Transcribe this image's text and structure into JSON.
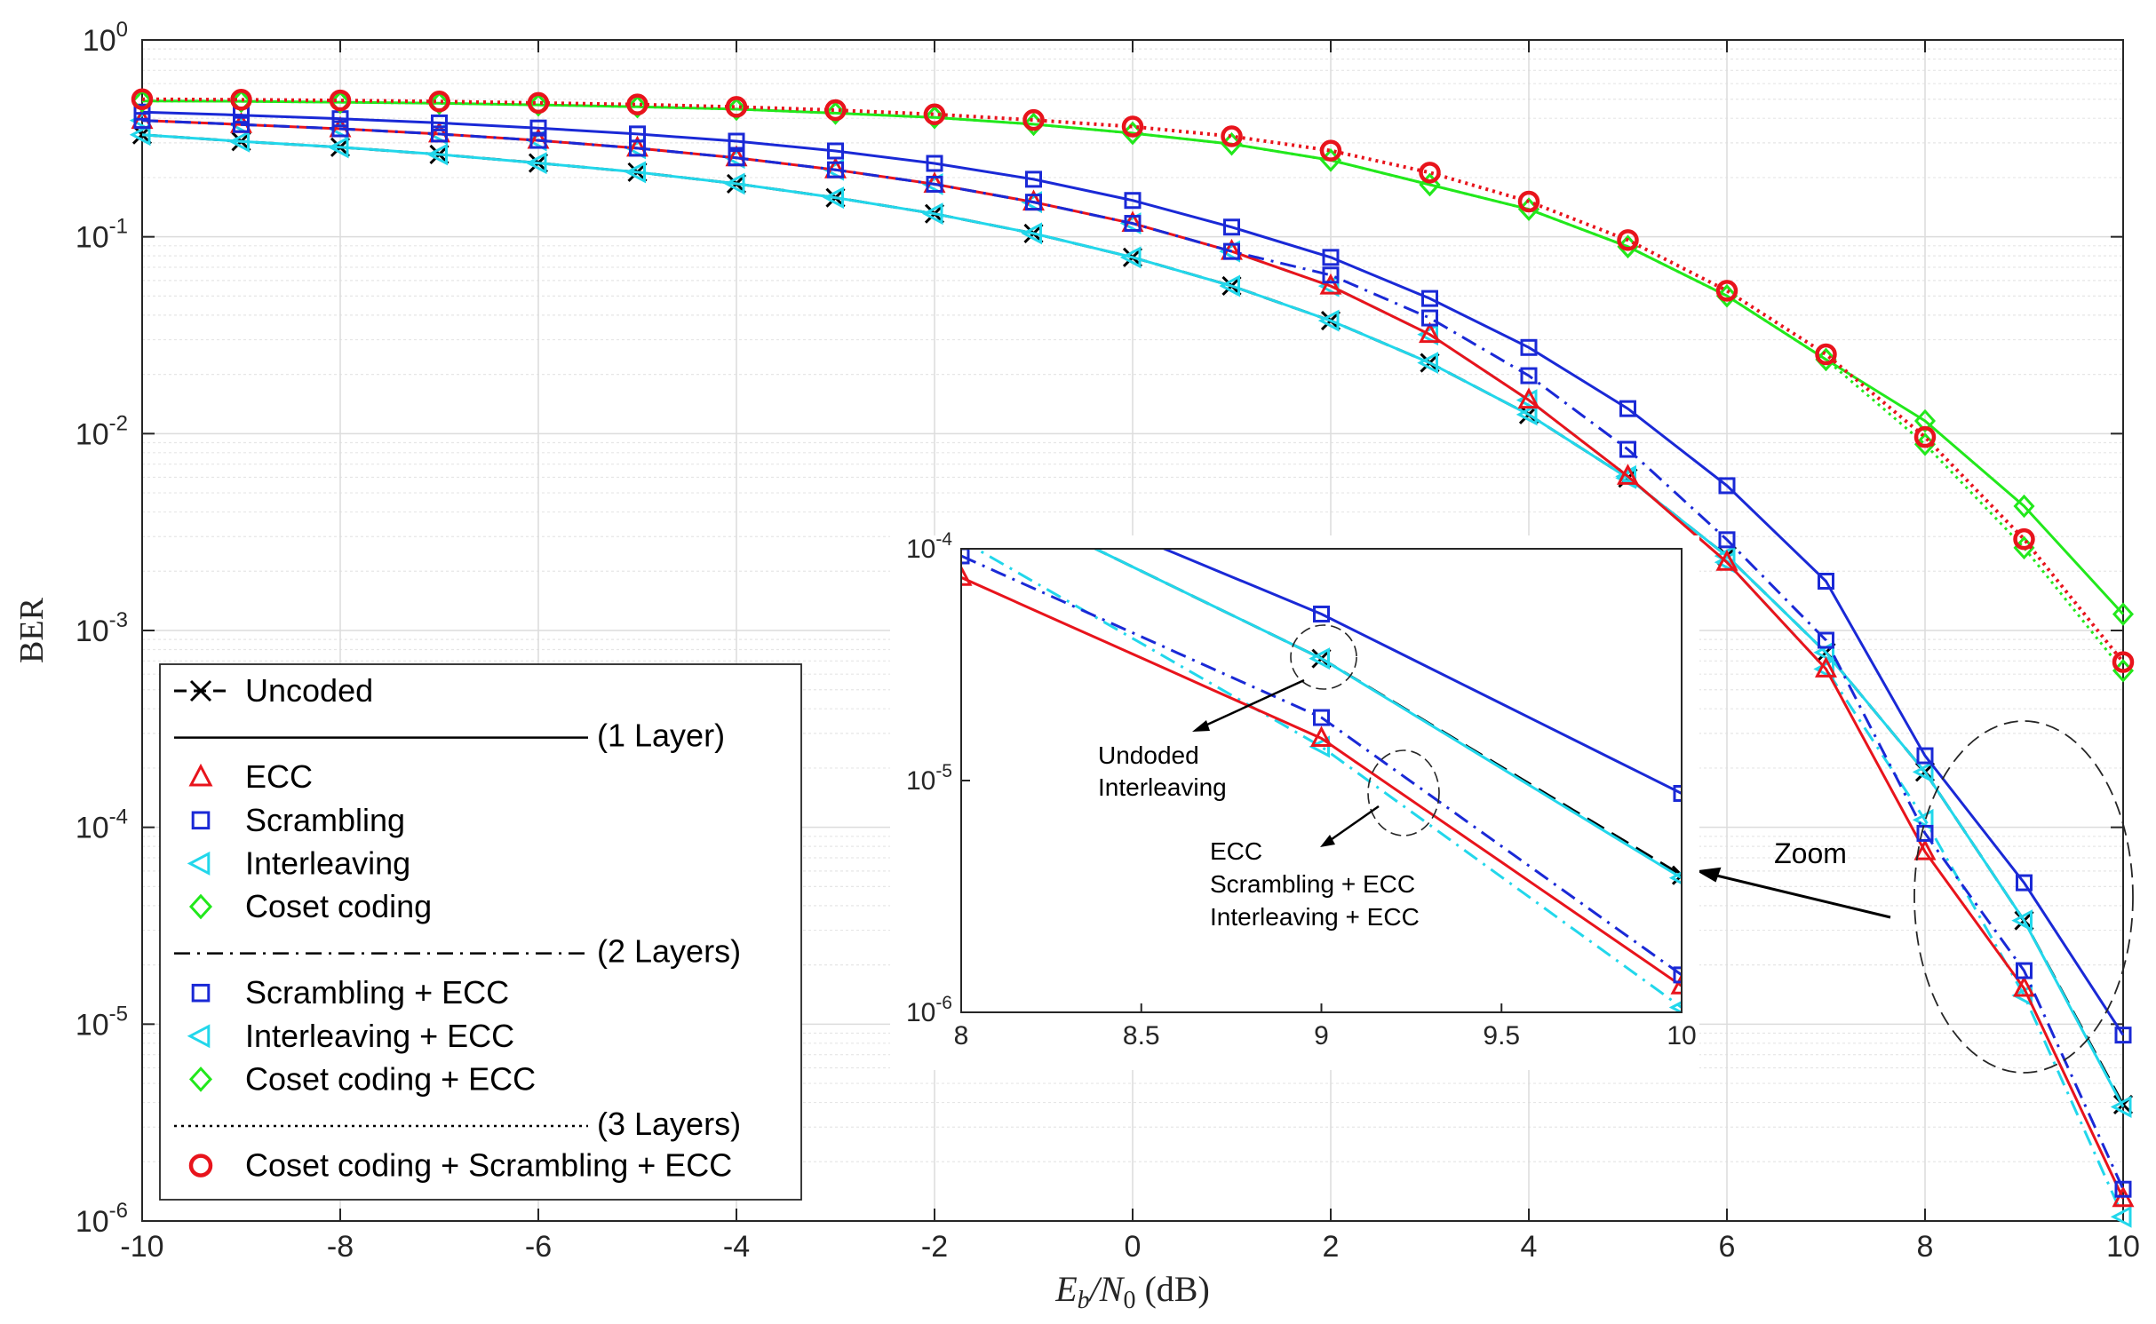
{
  "chart_data": [
    {
      "type": "line",
      "role": "main",
      "ylabel": "BER",
      "xlabel_var": "E",
      "xlabel_sub1": "b",
      "xlabel_slash": "/N",
      "xlabel_sub2": "0",
      "xlabel_unit": " (dB)",
      "yscale": "log",
      "xlim": [
        -10,
        10
      ],
      "ylim": [
        1e-06,
        1
      ],
      "grid": true,
      "xticks": [
        -10,
        -8,
        -6,
        -4,
        -2,
        0,
        2,
        4,
        6,
        8,
        10
      ],
      "xtick_labels": [
        "-10",
        "-8",
        "-6",
        "-4",
        "-2",
        "0",
        "2",
        "4",
        "6",
        "8",
        "10"
      ],
      "ytick_base": [
        "10",
        "10",
        "10",
        "10",
        "10",
        "10",
        "10"
      ],
      "ytick_exp": [
        "0",
        "-1",
        "-2",
        "-3",
        "-4",
        "-5",
        "-6"
      ],
      "ytick_values": [
        1,
        0.1,
        0.01,
        0.001,
        0.0001,
        1e-05,
        1e-06
      ],
      "x": [
        -10,
        -9,
        -8,
        -7,
        -6,
        -5,
        -4,
        -3,
        -2,
        -1,
        0,
        1,
        2,
        3,
        4,
        5,
        6,
        7,
        8,
        9,
        10
      ],
      "series": [
        {
          "key": "uncoded",
          "color": "#000000",
          "dash": "dashed",
          "marker": "x",
          "values": [
            0.33,
            0.305,
            0.285,
            0.262,
            0.237,
            0.213,
            0.186,
            0.158,
            0.131,
            0.104,
            0.0786,
            0.0563,
            0.0375,
            0.0229,
            0.0125,
            0.00595,
            0.00239,
            0.000773,
            0.000191,
            3.36e-05,
            3.9e-06
          ]
        },
        {
          "key": "ecc",
          "color": "#e8141c",
          "dash": "solid",
          "marker": "triangle-up",
          "values": [
            0.39,
            0.372,
            0.354,
            0.333,
            0.309,
            0.282,
            0.252,
            0.219,
            0.185,
            0.15,
            0.117,
            0.0843,
            0.0562,
            0.0319,
            0.0148,
            0.00607,
            0.00222,
            0.000637,
            7.52e-05,
            1.52e-05,
            1.3e-06
          ]
        },
        {
          "key": "scrambling",
          "color": "#1a29d6",
          "dash": "solid",
          "marker": "square",
          "values": [
            0.43,
            0.415,
            0.398,
            0.379,
            0.357,
            0.333,
            0.306,
            0.273,
            0.236,
            0.196,
            0.153,
            0.112,
            0.0786,
            0.0486,
            0.0274,
            0.0134,
            0.00544,
            0.00178,
            0.000231,
            5.23e-05,
            8.8e-06
          ]
        },
        {
          "key": "interleaving",
          "color": "#22d7eb",
          "dash": "solid",
          "marker": "triangle-left",
          "values": [
            0.33,
            0.305,
            0.285,
            0.262,
            0.237,
            0.213,
            0.186,
            0.158,
            0.131,
            0.104,
            0.0786,
            0.0563,
            0.0375,
            0.0229,
            0.0125,
            0.00595,
            0.00239,
            0.000773,
            0.000191,
            3.36e-05,
            3.8e-06
          ]
        },
        {
          "key": "coset",
          "color": "#22e81c",
          "dash": "solid",
          "marker": "diamond",
          "values": [
            0.49,
            0.488,
            0.483,
            0.477,
            0.468,
            0.458,
            0.445,
            0.425,
            0.404,
            0.373,
            0.336,
            0.296,
            0.245,
            0.184,
            0.138,
            0.0891,
            0.0501,
            0.0238,
            0.0116,
            0.00428,
            0.00121
          ]
        },
        {
          "key": "scr_ecc",
          "color": "#1a29d6",
          "dash": "dashdot",
          "marker": "square",
          "values": [
            0.39,
            0.372,
            0.354,
            0.333,
            0.309,
            0.282,
            0.252,
            0.219,
            0.185,
            0.15,
            0.117,
            0.0843,
            0.0639,
            0.0387,
            0.0197,
            0.00832,
            0.00289,
            0.000892,
            9.32e-05,
            1.87e-05,
            1.45e-06
          ]
        },
        {
          "key": "int_ecc",
          "color": "#22d7eb",
          "dash": "dashdot",
          "marker": "triangle-left",
          "values": [
            0.39,
            0.372,
            0.354,
            0.333,
            0.309,
            0.282,
            0.252,
            0.219,
            0.185,
            0.15,
            0.117,
            0.0843,
            0.0562,
            0.0319,
            0.0148,
            0.00607,
            0.00222,
            0.000637,
            0.000109,
            1.4e-05,
            1.05e-06
          ]
        },
        {
          "key": "coset_ecc",
          "color": "#22e81c",
          "dash": "dotted",
          "marker": "diamond",
          "values": [
            0.49,
            0.488,
            0.483,
            0.477,
            0.468,
            0.458,
            0.445,
            0.425,
            0.404,
            0.373,
            0.336,
            0.296,
            0.245,
            0.184,
            0.138,
            0.0891,
            0.0501,
            0.0238,
            0.00883,
            0.00263,
            0.000625
          ]
        },
        {
          "key": "coset_scr_ecc",
          "color": "#e8141c",
          "dash": "dotted",
          "marker": "circle",
          "values": [
            0.5,
            0.497,
            0.493,
            0.487,
            0.479,
            0.47,
            0.457,
            0.44,
            0.419,
            0.392,
            0.363,
            0.324,
            0.274,
            0.212,
            0.151,
            0.0962,
            0.0532,
            0.0253,
            0.00961,
            0.00291,
            0.000691
          ]
        }
      ],
      "legend": {
        "placement": "lower-left",
        "rows": [
          {
            "type": "series",
            "ref": "uncoded",
            "label": "Uncoded"
          },
          {
            "type": "header",
            "style": "solid",
            "label": "(1 Layer)"
          },
          {
            "type": "series",
            "ref": "ecc",
            "label": "ECC"
          },
          {
            "type": "series",
            "ref": "scrambling",
            "label": "Scrambling"
          },
          {
            "type": "series",
            "ref": "interleaving",
            "label": "Interleaving"
          },
          {
            "type": "series",
            "ref": "coset",
            "label": "Coset coding"
          },
          {
            "type": "header",
            "style": "dashdot",
            "label": "(2 Layers)"
          },
          {
            "type": "series",
            "ref": "scr_ecc",
            "label": "Scrambling + ECC"
          },
          {
            "type": "series",
            "ref": "int_ecc",
            "label": "Interleaving + ECC"
          },
          {
            "type": "series",
            "ref": "coset_ecc",
            "label": "Coset coding + ECC"
          },
          {
            "type": "header",
            "style": "dotted",
            "label": "(3 Layers)"
          },
          {
            "type": "series",
            "ref": "coset_scr_ecc",
            "label": "Coset coding + Scrambling + ECC"
          }
        ]
      },
      "annotations": {
        "zoom_label": "Zoom"
      }
    },
    {
      "type": "line",
      "role": "inset",
      "yscale": "log",
      "xlim": [
        8,
        10
      ],
      "ylim": [
        1e-06,
        0.0001
      ],
      "grid": false,
      "xticks": [
        8,
        8.5,
        9,
        9.5,
        10
      ],
      "xtick_labels": [
        "8",
        "8.5",
        "9",
        "9.5",
        "10"
      ],
      "ytick_base": [
        "10",
        "10",
        "10"
      ],
      "ytick_exp": [
        "-4",
        "-5",
        "-6"
      ],
      "ytick_values": [
        0.0001,
        1e-05,
        1e-06
      ],
      "annotations": {
        "group1_lines": [
          "Undoded",
          "Interleaving"
        ],
        "group2_lines": [
          "ECC",
          "Scrambling + ECC",
          "Interleaving + ECC"
        ]
      }
    }
  ]
}
